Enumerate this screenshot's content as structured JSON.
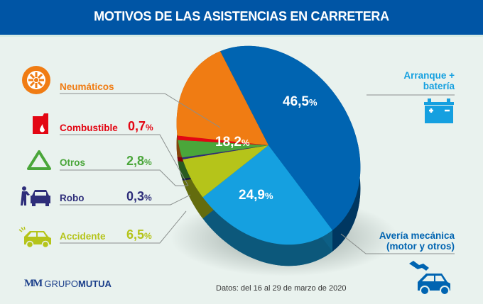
{
  "header": {
    "title": "MOTIVOS DE LAS ASISTENCIAS EN CARRETERA"
  },
  "colors": {
    "header_bg": "#0055a5",
    "neumaticos": "#f07c13",
    "combustible": "#e30613",
    "otros": "#4aa63a",
    "robo": "#2e2e7a",
    "accidente": "#b5c41a",
    "averia": "#15a0e0",
    "arranque": "#0064b1"
  },
  "chart_data": {
    "type": "pie",
    "title": "MOTIVOS DE LAS ASISTENCIAS EN CARRETERA",
    "unit": "%",
    "slices": [
      {
        "key": "arranque",
        "label": "Arranque + batería",
        "value": 46.5,
        "display": "46,5",
        "color": "#0064b1"
      },
      {
        "key": "averia",
        "label": "Avería mecánica (motor y otros)",
        "value": 24.9,
        "display": "24,9",
        "color": "#15a0e0"
      },
      {
        "key": "accidente",
        "label": "Accidente",
        "value": 6.5,
        "display": "6,5",
        "color": "#b5c41a"
      },
      {
        "key": "robo",
        "label": "Robo",
        "value": 0.3,
        "display": "0,3",
        "color": "#2e2e7a"
      },
      {
        "key": "otros",
        "label": "Otros",
        "value": 2.8,
        "display": "2,8",
        "color": "#4aa63a"
      },
      {
        "key": "combustible",
        "label": "Combustible",
        "value": 0.7,
        "display": "0,7",
        "color": "#e30613"
      },
      {
        "key": "neumaticos",
        "label": "Neumáticos",
        "value": 18.2,
        "display": "18,2",
        "color": "#f07c13"
      }
    ],
    "legend": "left-and-right"
  },
  "legend_left": {
    "neumaticos": {
      "label": "Neumáticos"
    },
    "combustible": {
      "label": "Combustible",
      "value": "0,7"
    },
    "otros": {
      "label": "Otros",
      "value": "2,8"
    },
    "robo": {
      "label": "Robo",
      "value": "0,3"
    },
    "accidente": {
      "label": "Accidente",
      "value": "6,5"
    }
  },
  "legend_right": {
    "arranque": {
      "line1": "Arranque +",
      "line2": "batería"
    },
    "averia": {
      "line1": "Avería mecánica",
      "line2": "(motor y otros)"
    }
  },
  "pie_labels": {
    "arranque": "46,5",
    "neumaticos": "18,2",
    "averia": "24,9"
  },
  "percent_sign": "%",
  "footer": {
    "source": "Datos: del 16 al 29 de marzo de 2020",
    "logo_mark": "MM",
    "logo_text_light": "GRUPO",
    "logo_text_bold": "MUTUA"
  }
}
